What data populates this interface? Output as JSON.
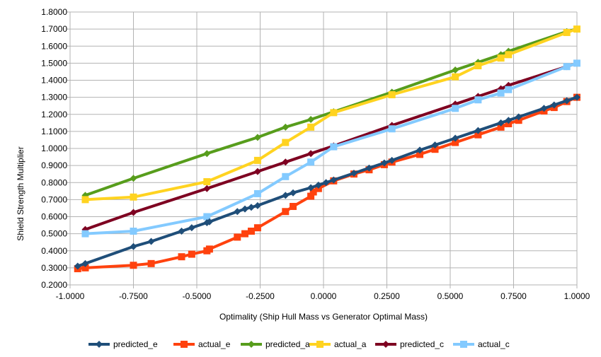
{
  "chart_data": {
    "type": "line",
    "title": "",
    "xlabel": "Optimality (Ship Hull Mass vs Generator Optimal Mass)",
    "ylabel": "Shield Strength Multiplier",
    "xlim": [
      -1.0,
      1.0
    ],
    "ylim": [
      0.2,
      1.8
    ],
    "x_ticks": [
      "-1.0000",
      "-0.7500",
      "-0.5000",
      "-0.2500",
      "0.0000",
      "0.2500",
      "0.5000",
      "0.7500",
      "1.0000"
    ],
    "y_ticks": [
      "0.2000",
      "0.3000",
      "0.4000",
      "0.5000",
      "0.6000",
      "0.7000",
      "0.8000",
      "0.9000",
      "1.0000",
      "1.1000",
      "1.2000",
      "1.3000",
      "1.4000",
      "1.5000",
      "1.6000",
      "1.7000",
      "1.8000"
    ],
    "grid": true,
    "legend_position": "bottom",
    "series": [
      {
        "name": "predicted_e",
        "color": "#1f4e79",
        "marker": "diamond",
        "points": [
          [
            -0.97,
            0.31
          ],
          [
            -0.94,
            0.325
          ],
          [
            -0.75,
            0.425
          ],
          [
            -0.68,
            0.455
          ],
          [
            -0.56,
            0.515
          ],
          [
            -0.52,
            0.535
          ],
          [
            -0.46,
            0.565
          ],
          [
            -0.45,
            0.57
          ],
          [
            -0.34,
            0.63
          ],
          [
            -0.31,
            0.645
          ],
          [
            -0.285,
            0.655
          ],
          [
            -0.26,
            0.665
          ],
          [
            -0.15,
            0.725
          ],
          [
            -0.12,
            0.74
          ],
          [
            -0.05,
            0.77
          ],
          [
            -0.02,
            0.785
          ],
          [
            0.01,
            0.8
          ],
          [
            0.04,
            0.815
          ],
          [
            0.12,
            0.855
          ],
          [
            0.18,
            0.885
          ],
          [
            0.24,
            0.915
          ],
          [
            0.27,
            0.93
          ],
          [
            0.38,
            0.99
          ],
          [
            0.44,
            1.02
          ],
          [
            0.52,
            1.06
          ],
          [
            0.61,
            1.105
          ],
          [
            0.7,
            1.15
          ],
          [
            0.73,
            1.165
          ],
          [
            0.77,
            1.185
          ],
          [
            0.87,
            1.235
          ],
          [
            0.91,
            1.255
          ],
          [
            0.96,
            1.28
          ],
          [
            1.0,
            1.3
          ]
        ]
      },
      {
        "name": "actual_e",
        "color": "#ff420e",
        "marker": "square",
        "points": [
          [
            -0.97,
            0.295
          ],
          [
            -0.94,
            0.3
          ],
          [
            -0.75,
            0.315
          ],
          [
            -0.68,
            0.325
          ],
          [
            -0.56,
            0.365
          ],
          [
            -0.52,
            0.38
          ],
          [
            -0.46,
            0.4
          ],
          [
            -0.45,
            0.41
          ],
          [
            -0.34,
            0.48
          ],
          [
            -0.31,
            0.5
          ],
          [
            -0.285,
            0.515
          ],
          [
            -0.26,
            0.535
          ],
          [
            -0.15,
            0.63
          ],
          [
            -0.12,
            0.66
          ],
          [
            -0.05,
            0.72
          ],
          [
            -0.04,
            0.745
          ],
          [
            -0.02,
            0.765
          ],
          [
            0.04,
            0.81
          ],
          [
            0.12,
            0.85
          ],
          [
            0.18,
            0.875
          ],
          [
            0.24,
            0.905
          ],
          [
            0.27,
            0.92
          ],
          [
            0.38,
            0.965
          ],
          [
            0.44,
            0.995
          ],
          [
            0.52,
            1.035
          ],
          [
            0.61,
            1.08
          ],
          [
            0.7,
            1.125
          ],
          [
            0.73,
            1.145
          ],
          [
            0.77,
            1.165
          ],
          [
            0.87,
            1.22
          ],
          [
            0.91,
            1.24
          ],
          [
            0.96,
            1.275
          ],
          [
            1.0,
            1.3
          ]
        ]
      },
      {
        "name": "predicted_a",
        "color": "#579d1c",
        "marker": "diamond",
        "points": [
          [
            -0.94,
            0.725
          ],
          [
            -0.75,
            0.825
          ],
          [
            -0.46,
            0.97
          ],
          [
            -0.26,
            1.065
          ],
          [
            -0.15,
            1.125
          ],
          [
            -0.05,
            1.17
          ],
          [
            0.04,
            1.215
          ],
          [
            0.27,
            1.33
          ],
          [
            0.52,
            1.46
          ],
          [
            0.61,
            1.505
          ],
          [
            0.7,
            1.55
          ],
          [
            0.73,
            1.57
          ],
          [
            0.96,
            1.685
          ],
          [
            1.0,
            1.7
          ]
        ]
      },
      {
        "name": "actual_a",
        "color": "#ffd320",
        "marker": "square",
        "points": [
          [
            -0.94,
            0.7
          ],
          [
            -0.75,
            0.715
          ],
          [
            -0.46,
            0.805
          ],
          [
            -0.26,
            0.93
          ],
          [
            -0.15,
            1.035
          ],
          [
            -0.05,
            1.125
          ],
          [
            0.04,
            1.21
          ],
          [
            0.27,
            1.315
          ],
          [
            0.52,
            1.42
          ],
          [
            0.61,
            1.485
          ],
          [
            0.7,
            1.53
          ],
          [
            0.73,
            1.55
          ],
          [
            0.96,
            1.68
          ],
          [
            1.0,
            1.7
          ]
        ]
      },
      {
        "name": "predicted_c",
        "color": "#7e0021",
        "marker": "diamond",
        "points": [
          [
            -0.94,
            0.525
          ],
          [
            -0.75,
            0.625
          ],
          [
            -0.46,
            0.765
          ],
          [
            -0.26,
            0.865
          ],
          [
            -0.15,
            0.92
          ],
          [
            -0.05,
            0.97
          ],
          [
            0.04,
            1.015
          ],
          [
            0.27,
            1.135
          ],
          [
            0.52,
            1.26
          ],
          [
            0.61,
            1.305
          ],
          [
            0.7,
            1.35
          ],
          [
            0.73,
            1.37
          ],
          [
            0.96,
            1.48
          ],
          [
            1.0,
            1.5
          ]
        ]
      },
      {
        "name": "actual_c",
        "color": "#83caff",
        "marker": "square",
        "points": [
          [
            -0.94,
            0.5
          ],
          [
            -0.75,
            0.515
          ],
          [
            -0.46,
            0.6
          ],
          [
            -0.26,
            0.735
          ],
          [
            -0.15,
            0.835
          ],
          [
            -0.05,
            0.92
          ],
          [
            0.04,
            1.01
          ],
          [
            0.27,
            1.115
          ],
          [
            0.52,
            1.235
          ],
          [
            0.61,
            1.285
          ],
          [
            0.7,
            1.325
          ],
          [
            0.73,
            1.345
          ],
          [
            0.96,
            1.48
          ],
          [
            1.0,
            1.5
          ]
        ]
      }
    ]
  }
}
